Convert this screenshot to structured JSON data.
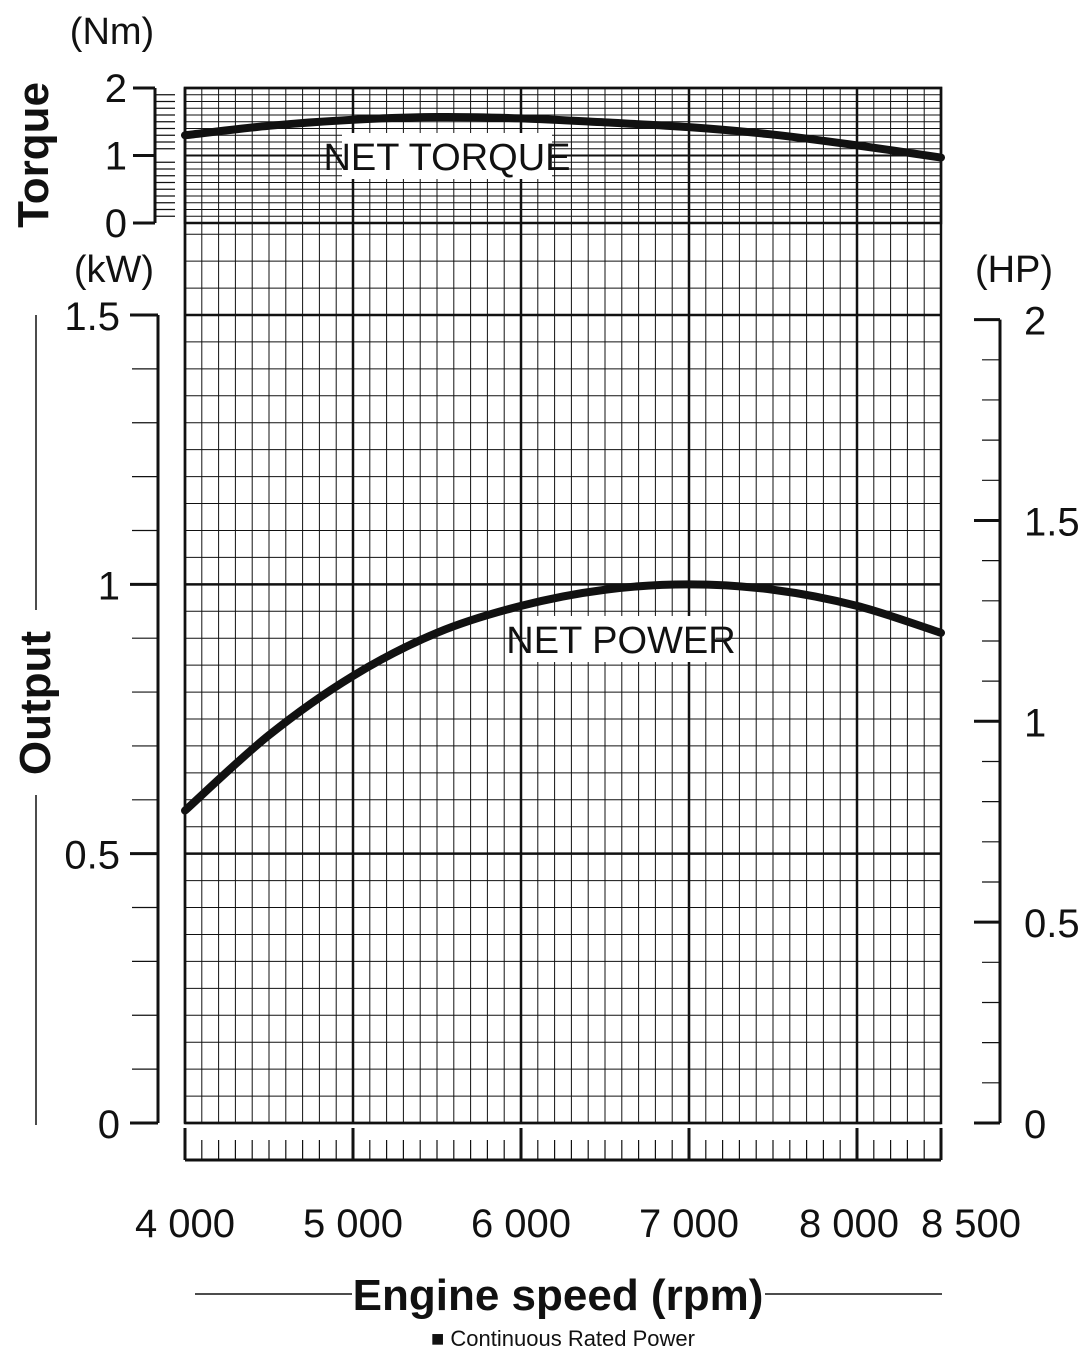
{
  "chart_data": {
    "type": "line",
    "x": {
      "label": "Engine speed (rpm)",
      "range": [
        4000,
        8500
      ],
      "ticks": [
        4000,
        5000,
        6000,
        7000,
        8000,
        8500
      ],
      "tick_labels": [
        "4 000",
        "5 000",
        "6 000",
        "7 000",
        "8 000",
        "8 500"
      ]
    },
    "torque_axis": {
      "title": "Torque",
      "unit": "(Nm)",
      "range": [
        0,
        2
      ],
      "ticks": [
        0,
        1,
        2
      ],
      "tick_labels": [
        "0",
        "1",
        "2"
      ]
    },
    "output_axis_left": {
      "title": "Output",
      "unit": "(kW)",
      "range": [
        0,
        1.5
      ],
      "ticks": [
        0,
        0.5,
        1,
        1.5
      ],
      "tick_labels": [
        "0",
        "0.5",
        "1",
        "1.5"
      ]
    },
    "output_axis_right": {
      "unit": "(HP)",
      "range": [
        0,
        2.0115
      ],
      "ticks": [
        0,
        0.5,
        1,
        1.5,
        2
      ],
      "tick_labels": [
        "0",
        "0.5",
        "1",
        "1.5",
        "2"
      ]
    },
    "series": [
      {
        "name": "NET TORQUE",
        "axis": "torque",
        "x": [
          4000,
          4500,
          5000,
          5500,
          6000,
          6500,
          7000,
          7500,
          8000,
          8500
        ],
        "y": [
          1.3,
          1.44,
          1.53,
          1.57,
          1.55,
          1.49,
          1.42,
          1.31,
          1.15,
          0.97
        ]
      },
      {
        "name": "NET POWER",
        "axis": "output",
        "x": [
          4000,
          4500,
          5000,
          5500,
          6000,
          6500,
          7000,
          7500,
          8000,
          8500
        ],
        "y": [
          0.58,
          0.72,
          0.83,
          0.91,
          0.96,
          0.99,
          1.0,
          0.99,
          0.96,
          0.91
        ]
      }
    ],
    "grid": true,
    "note": "■ Continuous Rated Power"
  }
}
